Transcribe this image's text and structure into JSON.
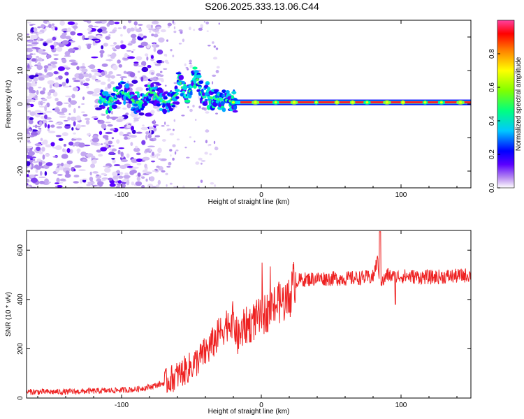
{
  "title": "S206.2025.333.13.06.C44",
  "chart_data": [
    {
      "type": "heatmap",
      "xlabel": "Height of straight line (km)",
      "ylabel": "Frequency (Hz)",
      "xlim": [
        -168,
        150
      ],
      "ylim": [
        -25,
        25
      ],
      "xticks": [
        -100,
        0,
        100
      ],
      "yticks": [
        -20,
        -10,
        0,
        10,
        20
      ],
      "colorbar": {
        "label": "Normalized spectral amplitude",
        "range": [
          0,
          1
        ],
        "ticks": [
          0.0,
          0.2,
          0.4,
          0.6,
          0.8
        ],
        "colors": [
          "#ffffff",
          "#b78cf0",
          "#5a00ff",
          "#0000ff",
          "#00c8ff",
          "#00ff80",
          "#80ff00",
          "#ffff00",
          "#ff8000",
          "#ff0000",
          "#ff40a0"
        ]
      },
      "features": {
        "noise_region_x": [
          -168,
          -80
        ],
        "line_onset_x": -38,
        "steady_line_freq_hz": 0.5,
        "steady_line_x": [
          -20,
          150
        ]
      }
    },
    {
      "type": "line",
      "xlabel": "Height of straight line (km)",
      "ylabel": "SNR (10 * v/v)",
      "xlim": [
        -168,
        150
      ],
      "ylim": [
        0,
        680
      ],
      "xticks": [
        -100,
        0,
        100
      ],
      "yticks": [
        0,
        200,
        400,
        600
      ],
      "series": [
        {
          "name": "SNR",
          "color": "#ee2222",
          "x": [
            -168,
            -140,
            -110,
            -90,
            -80,
            -70,
            -62,
            -55,
            -50,
            -45,
            -40,
            -35,
            -30,
            -25,
            -20,
            -17,
            -12,
            -8,
            -3,
            0,
            5,
            10,
            15,
            20,
            23,
            25,
            30,
            40,
            60,
            80,
            83,
            85,
            87,
            90,
            95,
            100,
            120,
            140,
            150
          ],
          "values": [
            25,
            25,
            30,
            35,
            45,
            60,
            85,
            110,
            130,
            155,
            185,
            220,
            260,
            300,
            320,
            240,
            290,
            300,
            320,
            330,
            355,
            380,
            390,
            400,
            470,
            475,
            480,
            485,
            485,
            490,
            560,
            480,
            470,
            500,
            490,
            495,
            490,
            495,
            500
          ]
        }
      ],
      "annotations": [
        {
          "x": 85,
          "y": 675,
          "note": "spike"
        },
        {
          "x": 84,
          "y": 265,
          "note": "dip"
        }
      ]
    }
  ]
}
